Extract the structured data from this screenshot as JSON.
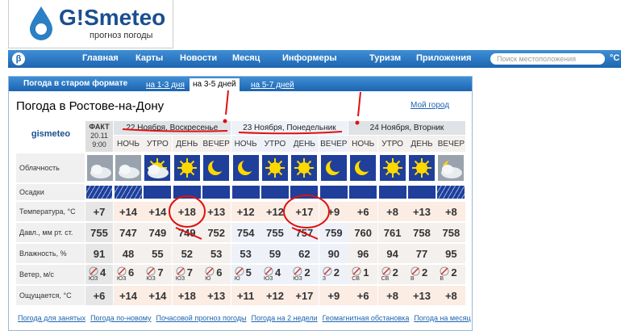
{
  "header": {
    "logo": "G!Smeteo",
    "tagline": "прогноз погоды"
  },
  "nav": {
    "beta": "β",
    "items": [
      "Главная",
      "Карты",
      "Новости",
      "Месяц",
      "Информеры",
      "Туризм",
      "Приложения"
    ],
    "search_placeholder": "Поиск местоположения",
    "unit": "°C"
  },
  "widget": {
    "title": "Погода в старом формате",
    "tabs": [
      "на 1-3 дня",
      "на 3-5 дней",
      "на 5-7 дней"
    ]
  },
  "city": "Погода в Ростове-на-Дону",
  "my_city": "Мой город",
  "table": {
    "brand": "gismeteo",
    "fact": {
      "label": "ФАКТ",
      "date": "20.11",
      "time": "9:00"
    },
    "days": [
      "22 Ноября, Воскресенье",
      "23 Ноября, Понедельник",
      "24 Ноября, Вторник"
    ],
    "periods": [
      "НОЧЬ",
      "УТРО",
      "ДЕНЬ",
      "ВЕЧЕР",
      "НОЧЬ",
      "УТРО",
      "ДЕНЬ",
      "ВЕЧЕР",
      "НОЧЬ",
      "УТРО",
      "ДЕНЬ",
      "ВЕЧЕР"
    ],
    "rows": [
      {
        "label": "Облачность"
      },
      {
        "label": "Осадки"
      },
      {
        "label": "Температура, °С",
        "values": [
          "+7",
          "+14",
          "+14",
          "+18",
          "+13",
          "+12",
          "+12",
          "+17",
          "+9",
          "+6",
          "+8",
          "+13",
          "+8"
        ]
      },
      {
        "label": "Давл., мм рт. ст.",
        "values": [
          "755",
          "747",
          "749",
          "749",
          "752",
          "754",
          "755",
          "757",
          "759",
          "760",
          "761",
          "758",
          "758"
        ]
      },
      {
        "label": "Влажность, %",
        "values": [
          "91",
          "48",
          "55",
          "52",
          "53",
          "53",
          "59",
          "62",
          "90",
          "96",
          "94",
          "77",
          "95"
        ]
      },
      {
        "label": "Ветер, м/с",
        "values": [
          "4",
          "6",
          "7",
          "7",
          "6",
          "5",
          "4",
          "2",
          "2",
          "1",
          "2",
          "2",
          "2"
        ],
        "directions": [
          "ЮЗ",
          "ЮЗ",
          "ЮЗ",
          "ЮЗ",
          "Ю",
          "Ю",
          "ЮЗ",
          "ЮЗ",
          "З",
          "СВ",
          "СВ",
          "В",
          "В"
        ]
      },
      {
        "label": "Ощущается, °С",
        "values": [
          "+6",
          "+14",
          "+14",
          "+18",
          "+13",
          "+11",
          "+12",
          "+17",
          "+9",
          "+6",
          "+8",
          "+13",
          "+8"
        ]
      }
    ]
  },
  "footer": {
    "links": [
      "Погода для занятых",
      "Погода по-новому",
      "Почасовой прогноз погоды",
      "Погода на 2 недели",
      "Геомагнитная обстановка",
      "Погода на месяц"
    ]
  }
}
